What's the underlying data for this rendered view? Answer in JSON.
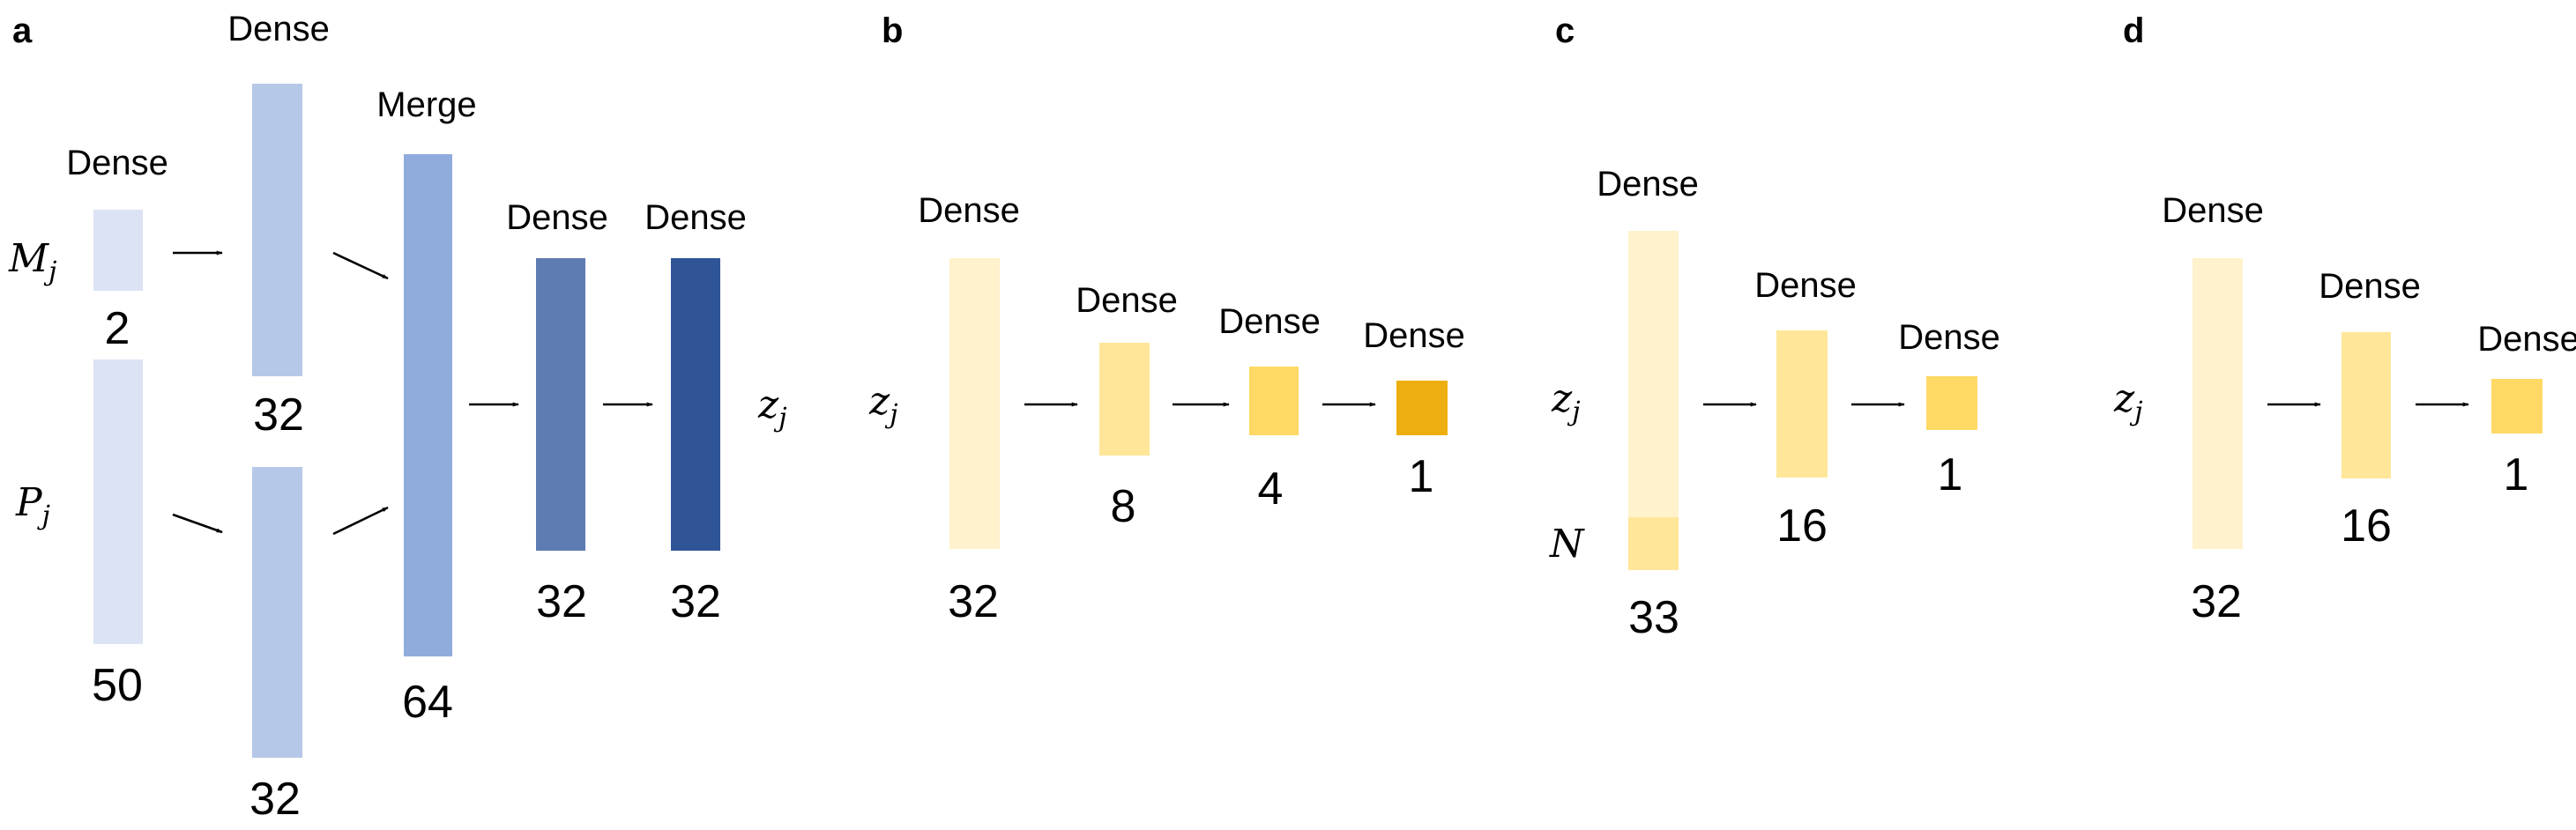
{
  "panels": {
    "a": {
      "label": "a",
      "inputs": {
        "m": "M",
        "m_sub": "j",
        "p": "P",
        "p_sub": "j"
      },
      "output": {
        "z": "z",
        "z_sub": "j"
      },
      "layers": [
        {
          "id": "m-input",
          "top_label": "Dense",
          "size": "2",
          "color": "#dbe3f4"
        },
        {
          "id": "p-input",
          "top_label": "",
          "size": "50",
          "color": "#dbe3f4"
        },
        {
          "id": "m-dense",
          "top_label": "Dense",
          "size": "32",
          "color": "#b5c8e8"
        },
        {
          "id": "p-dense",
          "top_label": "",
          "size": "32",
          "color": "#b5c8e8"
        },
        {
          "id": "merge",
          "top_label": "Merge",
          "size": "64",
          "color": "#8facdd"
        },
        {
          "id": "dense-1",
          "top_label": "Dense",
          "size": "32",
          "color": "#5e7bb2"
        },
        {
          "id": "dense-2",
          "top_label": "Dense",
          "size": "32",
          "color": "#2f5597"
        }
      ]
    },
    "b": {
      "label": "b",
      "input": {
        "z": "z",
        "z_sub": "j"
      },
      "layers": [
        {
          "id": "input",
          "top_label": "Dense",
          "size": "32",
          "color": "#fff2cc"
        },
        {
          "id": "dense-1",
          "top_label": "Dense",
          "size": "8",
          "color": "#ffe699"
        },
        {
          "id": "dense-2",
          "top_label": "Dense",
          "size": "4",
          "color": "#ffd966"
        },
        {
          "id": "dense-3",
          "top_label": "Dense",
          "size": "1",
          "color": "#edae10"
        }
      ]
    },
    "c": {
      "label": "c",
      "inputs": {
        "z": "z",
        "z_sub": "j",
        "n": "N"
      },
      "layers": [
        {
          "id": "input",
          "top_label": "Dense",
          "size": "33",
          "color": "#fff2cc",
          "n_color": "#ffe699"
        },
        {
          "id": "dense-1",
          "top_label": "Dense",
          "size": "16",
          "color": "#ffe699"
        },
        {
          "id": "dense-2",
          "top_label": "Dense",
          "size": "1",
          "color": "#ffd966"
        }
      ]
    },
    "d": {
      "label": "d",
      "input": {
        "z": "z",
        "z_sub": "j"
      },
      "layers": [
        {
          "id": "input",
          "top_label": "Dense",
          "size": "32",
          "color": "#fff2cc"
        },
        {
          "id": "dense-1",
          "top_label": "Dense",
          "size": "16",
          "color": "#ffe699"
        },
        {
          "id": "dense-2",
          "top_label": "Dense",
          "size": "1",
          "color": "#ffd966"
        }
      ]
    }
  }
}
